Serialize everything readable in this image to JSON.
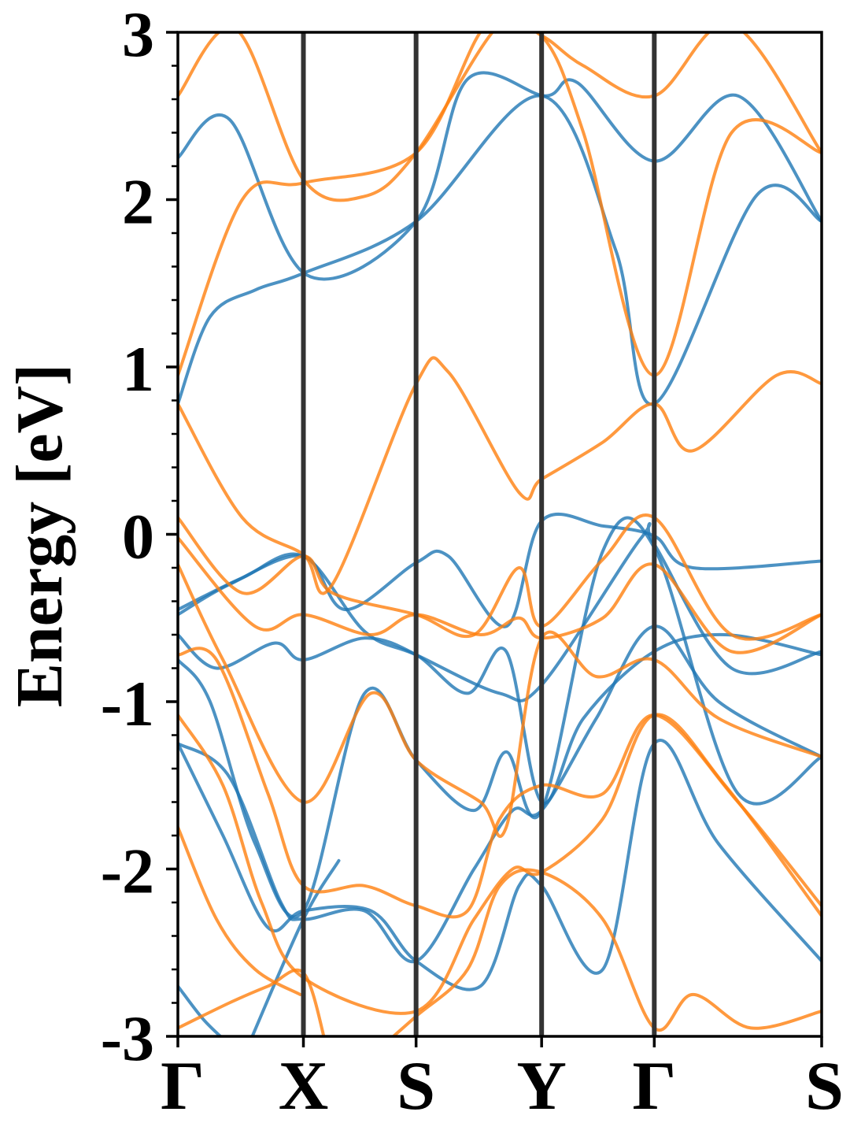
{
  "chart_data": {
    "type": "line",
    "title": "",
    "xlabel": "",
    "ylabel": "Energy [eV]",
    "ylim": [
      -3,
      3
    ],
    "yticks": [
      3,
      2,
      1,
      0,
      -1,
      -2,
      -3
    ],
    "yticks_labels": [
      "3",
      "2",
      "1",
      "0",
      "-1",
      "-2",
      "-3"
    ],
    "minor_yticks_step": 0.2,
    "kpath_labels": [
      "Γ",
      "X",
      "S",
      "Y",
      "Γ",
      "S"
    ],
    "kpath_positions": [
      0,
      0.195,
      0.37,
      0.565,
      0.74,
      1.0
    ],
    "grid": false,
    "legend": "none",
    "colors": {
      "blue": "#1f77b4",
      "orange": "#ff7f0e",
      "kline": "#333333",
      "axis": "#000000"
    },
    "series": [
      {
        "color": "#1f77b4",
        "x": [
          0,
          0.08,
          0.2,
          0.37,
          0.45,
          0.57,
          0.62,
          0.74,
          0.87,
          1.0
        ],
        "y": [
          2.25,
          2.48,
          1.55,
          1.87,
          2.72,
          2.62,
          2.7,
          2.23,
          2.62,
          1.87
        ]
      },
      {
        "color": "#1f77b4",
        "x": [
          0,
          0.05,
          0.12,
          0.195,
          0.37,
          0.565,
          0.68,
          0.74,
          0.9,
          1.0
        ],
        "y": [
          0.78,
          1.3,
          1.46,
          1.56,
          1.87,
          2.62,
          1.7,
          0.78,
          2.03,
          1.87
        ]
      },
      {
        "color": "#1f77b4",
        "x": [
          0,
          0.08,
          0.195,
          0.26,
          0.37,
          0.42,
          0.51,
          0.565,
          0.66,
          0.74,
          0.8,
          1.0
        ],
        "y": [
          -0.48,
          -0.3,
          -0.13,
          -0.45,
          -0.17,
          -0.13,
          -0.55,
          0.08,
          0.05,
          -0.01,
          -0.2,
          -0.16
        ]
      },
      {
        "color": "#1f77b4",
        "x": [
          0,
          0.1,
          0.195,
          0.29,
          0.37,
          0.5,
          0.565,
          0.72,
          0.74,
          0.86,
          1.0
        ],
        "y": [
          -0.45,
          -0.26,
          -0.13,
          -0.58,
          -0.72,
          -0.95,
          -0.9,
          -0.02,
          -0.06,
          -0.8,
          -0.7
        ]
      },
      {
        "color": "#1f77b4",
        "x": [
          0,
          0.06,
          0.15,
          0.195,
          0.29,
          0.37,
          0.45,
          0.51,
          0.565,
          0.63,
          0.74,
          0.85,
          1.0
        ],
        "y": [
          -0.6,
          -0.8,
          -0.65,
          -0.75,
          -0.62,
          -0.72,
          -0.95,
          -0.7,
          -1.6,
          -1.1,
          -0.7,
          -0.6,
          -0.72
        ]
      },
      {
        "color": "#1f77b4",
        "x": [
          0,
          0.05,
          0.12,
          0.195,
          0.29,
          0.37,
          0.46,
          0.51,
          0.565,
          0.66,
          0.74,
          0.87,
          1.0
        ],
        "y": [
          -0.75,
          -1.0,
          -1.85,
          -2.25,
          -0.95,
          -1.35,
          -1.65,
          -1.3,
          -1.65,
          -0.1,
          -0.08,
          -1.55,
          -1.33
        ]
      },
      {
        "color": "#1f77b4",
        "x": [
          0,
          0.08,
          0.16,
          0.195,
          0.29,
          0.37,
          0.46,
          0.52,
          0.565,
          0.65,
          0.74,
          0.84,
          1.0
        ],
        "y": [
          -1.25,
          -1.45,
          -2.2,
          -2.3,
          -2.25,
          -2.55,
          -2.0,
          -1.65,
          -1.65,
          -1.1,
          -0.55,
          -1.0,
          -1.33
        ]
      },
      {
        "color": "#1f77b4",
        "x": [
          0,
          0.07,
          0.14,
          0.195,
          0.3,
          0.37,
          0.47,
          0.53,
          0.565,
          0.66,
          0.74,
          0.84,
          1.0
        ],
        "y": [
          -1.25,
          -1.8,
          -2.35,
          -2.25,
          -2.25,
          -2.55,
          -2.7,
          -2.1,
          -2.1,
          -2.6,
          -1.25,
          -1.85,
          -2.55
        ]
      },
      {
        "color": "#1f77b4",
        "x": [
          0,
          0.04,
          0.08,
          0.12
        ],
        "y": [
          -2.7,
          -2.9,
          -3.05,
          -3.2
        ]
      },
      {
        "color": "#1f77b4",
        "x": [
          0.11,
          0.195,
          0.25
        ],
        "y": [
          -3.05,
          -2.3,
          -1.95
        ]
      },
      {
        "color": "#ff7f0e",
        "x": [
          0,
          0.09,
          0.195,
          0.29,
          0.37,
          0.5,
          0.565,
          0.63,
          0.74,
          0.86,
          1.0
        ],
        "y": [
          2.62,
          3.02,
          2.12,
          2.02,
          2.28,
          3.05,
          2.98,
          2.8,
          2.62,
          3.05,
          2.28
        ]
      },
      {
        "color": "#ff7f0e",
        "x": [
          0,
          0.1,
          0.195,
          0.37,
          0.48,
          0.565,
          0.63,
          0.74,
          0.86,
          1.0
        ],
        "y": [
          0.95,
          2.0,
          2.1,
          2.28,
          3.05,
          2.98,
          2.4,
          0.95,
          2.4,
          2.28
        ]
      },
      {
        "color": "#ff7f0e",
        "x": [
          0,
          0.1,
          0.195,
          0.24,
          0.37,
          0.42,
          0.53,
          0.565,
          0.66,
          0.74,
          0.8,
          0.93,
          1.0
        ],
        "y": [
          0.78,
          0.1,
          -0.12,
          -0.3,
          0.9,
          0.97,
          0.25,
          0.33,
          0.55,
          0.78,
          0.5,
          0.95,
          0.9
        ]
      },
      {
        "color": "#ff7f0e",
        "x": [
          0,
          0.1,
          0.195,
          0.24,
          0.37,
          0.46,
          0.53,
          0.565,
          0.66,
          0.74,
          0.86,
          1.0
        ],
        "y": [
          0.1,
          -0.35,
          -0.13,
          -0.35,
          -0.48,
          -0.6,
          -0.2,
          -0.55,
          -0.15,
          0.1,
          -0.6,
          -0.48
        ]
      },
      {
        "color": "#ff7f0e",
        "x": [
          0,
          0.12,
          0.195,
          0.3,
          0.37,
          0.47,
          0.53,
          0.565,
          0.66,
          0.74,
          0.86,
          1.0
        ],
        "y": [
          -0.02,
          -0.55,
          -0.48,
          -0.6,
          -0.48,
          -0.6,
          -0.5,
          -0.62,
          -0.5,
          -0.18,
          -0.7,
          -0.48
        ]
      },
      {
        "color": "#ff7f0e",
        "x": [
          0,
          0.07,
          0.195,
          0.3,
          0.37,
          0.47,
          0.51,
          0.565,
          0.65,
          0.74,
          0.84,
          1.0
        ],
        "y": [
          -0.18,
          -0.75,
          -1.6,
          -0.95,
          -1.35,
          -1.6,
          -1.75,
          -0.62,
          -0.85,
          -0.75,
          -1.1,
          -1.33
        ]
      },
      {
        "color": "#ff7f0e",
        "x": [
          0,
          0.06,
          0.14,
          0.195,
          0.29,
          0.37,
          0.45,
          0.5,
          0.565,
          0.66,
          0.74,
          0.87,
          1.0
        ],
        "y": [
          -0.72,
          -0.75,
          -1.55,
          -2.1,
          -2.1,
          -2.22,
          -2.25,
          -1.7,
          -1.5,
          -1.55,
          -1.08,
          -1.6,
          -2.22
        ]
      },
      {
        "color": "#ff7f0e",
        "x": [
          0,
          0.07,
          0.13,
          0.195,
          0.37,
          0.46,
          0.52,
          0.565,
          0.66,
          0.74,
          0.85,
          1.0
        ],
        "y": [
          -1.08,
          -1.5,
          -2.2,
          -2.65,
          -2.85,
          -2.3,
          -2.0,
          -2.02,
          -1.7,
          -1.08,
          -1.5,
          -2.28
        ]
      },
      {
        "color": "#ff7f0e",
        "x": [
          0,
          0.06,
          0.12,
          0.19
        ],
        "y": [
          -1.75,
          -2.3,
          -2.6,
          -2.75
        ]
      },
      {
        "color": "#ff7f0e",
        "x": [
          0,
          0.08,
          0.14,
          0.195,
          0.23
        ],
        "y": [
          -2.95,
          -2.8,
          -2.7,
          -2.62,
          -3.05
        ]
      },
      {
        "color": "#ff7f0e",
        "x": [
          0.32,
          0.37,
          0.45,
          0.5,
          0.565,
          0.66,
          0.74,
          0.8,
          0.89,
          1.0
        ],
        "y": [
          -3.05,
          -2.88,
          -2.6,
          -2.1,
          -2.02,
          -2.3,
          -2.95,
          -2.75,
          -2.95,
          -2.85
        ]
      }
    ]
  }
}
